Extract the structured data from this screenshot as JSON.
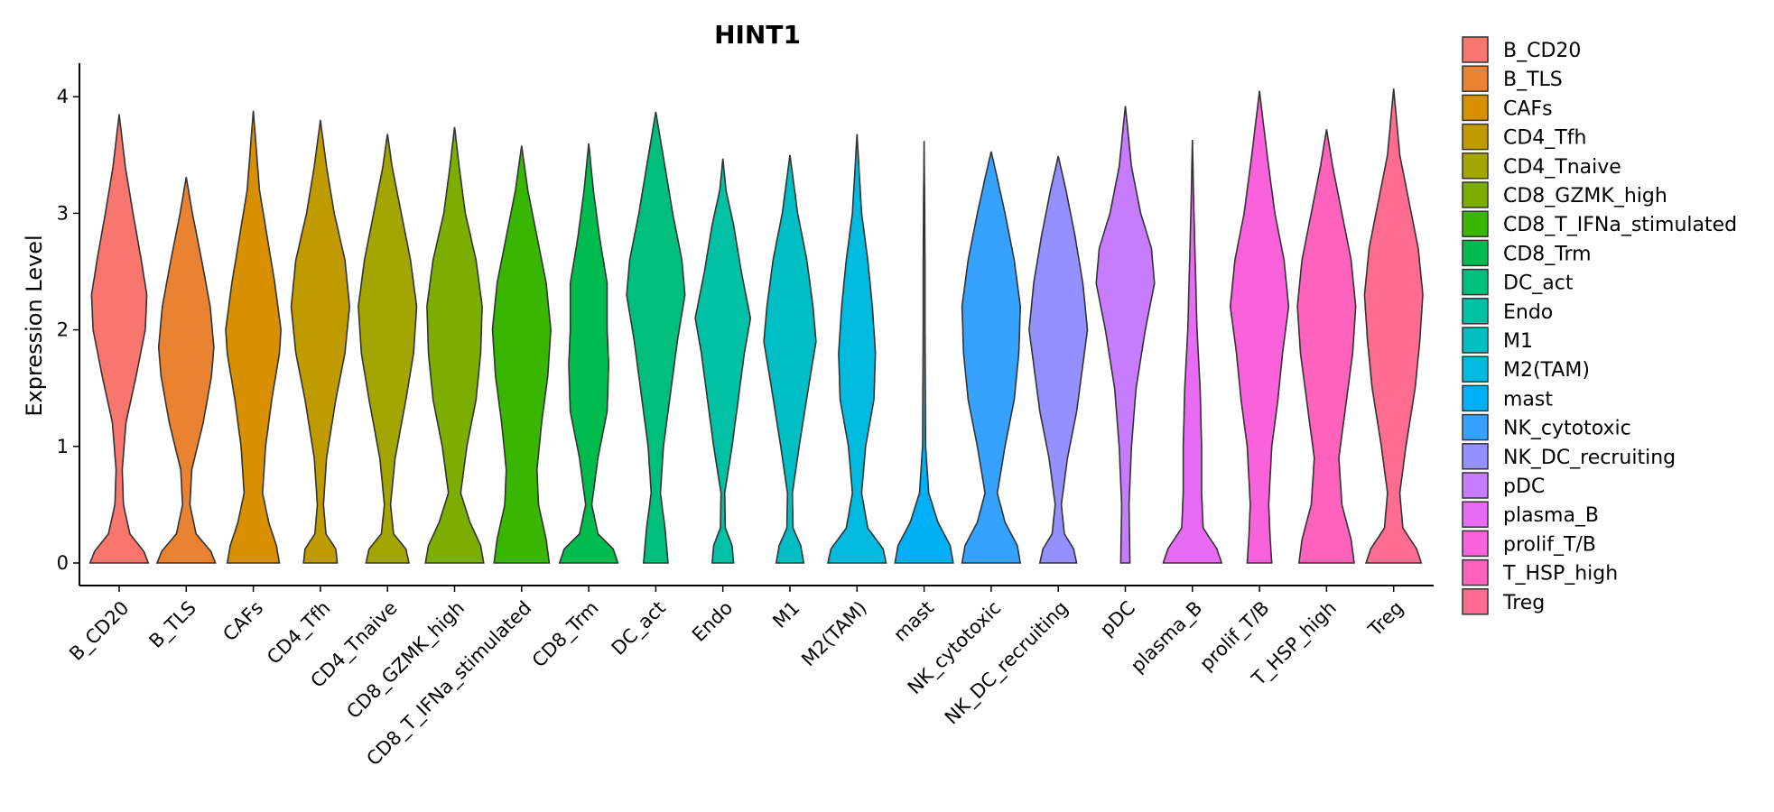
{
  "chart_data": {
    "type": "violin",
    "title": "HINT1",
    "xlabel": "",
    "ylabel": "Expression Level",
    "ylim": [
      0,
      4.3
    ],
    "yticks": [
      "0",
      "1",
      "2",
      "3",
      "4"
    ],
    "grid": false,
    "legend_position": "right",
    "categories": [
      "B_CD20",
      "B_TLS",
      "CAFs",
      "CD4_Tfh",
      "CD4_Tnaive",
      "CD8_GZMK_high",
      "CD8_T_IFNa_stimulated",
      "CD8_Trm",
      "DC_act",
      "Endo",
      "M1",
      "M2(TAM)",
      "mast",
      "NK_cytotoxic",
      "NK_DC_recruiting",
      "pDC",
      "plasma_B",
      "prolif_T/B",
      "T_HSP_high",
      "Treg"
    ],
    "colors": [
      "#F8766D",
      "#EA8331",
      "#D89000",
      "#C09B00",
      "#A3A500",
      "#7CAE00",
      "#39B600",
      "#00BB4E",
      "#00BF7D",
      "#00C1A3",
      "#00BFC4",
      "#00BAE0",
      "#00B0F6",
      "#35A2FF",
      "#9590FF",
      "#C77CFF",
      "#E76BF3",
      "#FA62DB",
      "#FF62BC",
      "#FF6C91"
    ],
    "series": [
      {
        "max": 3.85,
        "profile": [
          [
            0,
            0.95
          ],
          [
            0.1,
            0.8
          ],
          [
            0.25,
            0.35
          ],
          [
            0.5,
            0.14
          ],
          [
            0.8,
            0.1
          ],
          [
            1.2,
            0.22
          ],
          [
            1.6,
            0.55
          ],
          [
            2.0,
            0.85
          ],
          [
            2.3,
            0.9
          ],
          [
            2.6,
            0.72
          ],
          [
            3.0,
            0.45
          ],
          [
            3.4,
            0.2
          ],
          [
            3.85,
            0
          ]
        ]
      },
      {
        "max": 3.31,
        "profile": [
          [
            0,
            0.95
          ],
          [
            0.1,
            0.8
          ],
          [
            0.25,
            0.32
          ],
          [
            0.5,
            0.12
          ],
          [
            0.8,
            0.18
          ],
          [
            1.2,
            0.55
          ],
          [
            1.6,
            0.82
          ],
          [
            1.85,
            0.9
          ],
          [
            2.2,
            0.78
          ],
          [
            2.6,
            0.5
          ],
          [
            3.0,
            0.2
          ],
          [
            3.31,
            0
          ]
        ]
      },
      {
        "max": 3.88,
        "profile": [
          [
            0,
            0.85
          ],
          [
            0.15,
            0.75
          ],
          [
            0.35,
            0.5
          ],
          [
            0.6,
            0.3
          ],
          [
            1.0,
            0.4
          ],
          [
            1.4,
            0.6
          ],
          [
            1.8,
            0.85
          ],
          [
            2.0,
            0.9
          ],
          [
            2.4,
            0.7
          ],
          [
            2.8,
            0.45
          ],
          [
            3.2,
            0.2
          ],
          [
            3.88,
            0
          ]
        ]
      },
      {
        "max": 3.8,
        "profile": [
          [
            0,
            0.55
          ],
          [
            0.12,
            0.5
          ],
          [
            0.25,
            0.18
          ],
          [
            0.5,
            0.1
          ],
          [
            0.9,
            0.2
          ],
          [
            1.4,
            0.5
          ],
          [
            1.8,
            0.8
          ],
          [
            2.2,
            0.95
          ],
          [
            2.6,
            0.8
          ],
          [
            3.0,
            0.45
          ],
          [
            3.4,
            0.2
          ],
          [
            3.8,
            0
          ]
        ]
      },
      {
        "max": 3.68,
        "profile": [
          [
            0,
            0.7
          ],
          [
            0.12,
            0.6
          ],
          [
            0.25,
            0.2
          ],
          [
            0.5,
            0.1
          ],
          [
            0.9,
            0.25
          ],
          [
            1.4,
            0.6
          ],
          [
            1.8,
            0.85
          ],
          [
            2.2,
            0.95
          ],
          [
            2.6,
            0.75
          ],
          [
            3.0,
            0.45
          ],
          [
            3.4,
            0.15
          ],
          [
            3.68,
            0
          ]
        ]
      },
      {
        "max": 3.74,
        "profile": [
          [
            0,
            0.95
          ],
          [
            0.15,
            0.85
          ],
          [
            0.35,
            0.5
          ],
          [
            0.6,
            0.2
          ],
          [
            1.0,
            0.4
          ],
          [
            1.4,
            0.7
          ],
          [
            1.8,
            0.85
          ],
          [
            2.2,
            0.9
          ],
          [
            2.6,
            0.7
          ],
          [
            3.0,
            0.35
          ],
          [
            3.4,
            0.15
          ],
          [
            3.74,
            0
          ]
        ]
      },
      {
        "max": 3.58,
        "profile": [
          [
            0,
            0.9
          ],
          [
            0.2,
            0.8
          ],
          [
            0.5,
            0.55
          ],
          [
            0.8,
            0.5
          ],
          [
            1.2,
            0.65
          ],
          [
            1.6,
            0.85
          ],
          [
            2.0,
            0.95
          ],
          [
            2.4,
            0.8
          ],
          [
            2.8,
            0.5
          ],
          [
            3.2,
            0.2
          ],
          [
            3.58,
            0
          ]
        ]
      },
      {
        "max": 3.6,
        "profile": [
          [
            0,
            0.95
          ],
          [
            0.12,
            0.8
          ],
          [
            0.25,
            0.3
          ],
          [
            0.5,
            0.1
          ],
          [
            0.9,
            0.3
          ],
          [
            1.3,
            0.6
          ],
          [
            1.7,
            0.65
          ],
          [
            2.0,
            0.6
          ],
          [
            2.4,
            0.6
          ],
          [
            2.8,
            0.35
          ],
          [
            3.2,
            0.15
          ],
          [
            3.6,
            0
          ]
        ]
      },
      {
        "max": 3.87,
        "profile": [
          [
            0,
            0.4
          ],
          [
            0.3,
            0.3
          ],
          [
            0.6,
            0.15
          ],
          [
            1.0,
            0.25
          ],
          [
            1.5,
            0.5
          ],
          [
            1.9,
            0.7
          ],
          [
            2.3,
            0.95
          ],
          [
            2.6,
            0.85
          ],
          [
            3.0,
            0.55
          ],
          [
            3.4,
            0.3
          ],
          [
            3.87,
            0
          ]
        ]
      },
      {
        "max": 3.47,
        "profile": [
          [
            0,
            0.35
          ],
          [
            0.15,
            0.3
          ],
          [
            0.3,
            0.08
          ],
          [
            0.6,
            0.06
          ],
          [
            1.0,
            0.3
          ],
          [
            1.5,
            0.55
          ],
          [
            1.8,
            0.7
          ],
          [
            2.1,
            0.9
          ],
          [
            2.5,
            0.6
          ],
          [
            2.9,
            0.35
          ],
          [
            3.2,
            0.1
          ],
          [
            3.47,
            0
          ]
        ]
      },
      {
        "max": 3.5,
        "profile": [
          [
            0,
            0.45
          ],
          [
            0.15,
            0.35
          ],
          [
            0.3,
            0.1
          ],
          [
            0.6,
            0.08
          ],
          [
            1.0,
            0.3
          ],
          [
            1.5,
            0.6
          ],
          [
            1.9,
            0.85
          ],
          [
            2.2,
            0.75
          ],
          [
            2.6,
            0.55
          ],
          [
            3.0,
            0.25
          ],
          [
            3.3,
            0.1
          ],
          [
            3.5,
            0
          ]
        ]
      },
      {
        "max": 3.68,
        "profile": [
          [
            0,
            0.95
          ],
          [
            0.12,
            0.85
          ],
          [
            0.3,
            0.35
          ],
          [
            0.6,
            0.15
          ],
          [
            1.0,
            0.28
          ],
          [
            1.4,
            0.55
          ],
          [
            1.8,
            0.6
          ],
          [
            2.2,
            0.5
          ],
          [
            2.6,
            0.35
          ],
          [
            3.0,
            0.15
          ],
          [
            3.68,
            0
          ]
        ]
      },
      {
        "max": 3.62,
        "profile": [
          [
            0,
            0.95
          ],
          [
            0.15,
            0.85
          ],
          [
            0.35,
            0.45
          ],
          [
            0.6,
            0.15
          ],
          [
            1.0,
            0.05
          ],
          [
            1.5,
            0.04
          ],
          [
            2.0,
            0.03
          ],
          [
            2.5,
            0.03
          ],
          [
            3.0,
            0.02
          ],
          [
            3.62,
            0
          ]
        ]
      },
      {
        "max": 3.53,
        "profile": [
          [
            0,
            0.95
          ],
          [
            0.15,
            0.85
          ],
          [
            0.35,
            0.45
          ],
          [
            0.6,
            0.2
          ],
          [
            1.0,
            0.45
          ],
          [
            1.4,
            0.75
          ],
          [
            1.8,
            0.9
          ],
          [
            2.2,
            0.95
          ],
          [
            2.6,
            0.75
          ],
          [
            3.0,
            0.45
          ],
          [
            3.3,
            0.2
          ],
          [
            3.53,
            0
          ]
        ]
      },
      {
        "max": 3.49,
        "profile": [
          [
            0,
            0.6
          ],
          [
            0.12,
            0.5
          ],
          [
            0.25,
            0.2
          ],
          [
            0.5,
            0.1
          ],
          [
            0.9,
            0.3
          ],
          [
            1.3,
            0.6
          ],
          [
            1.7,
            0.8
          ],
          [
            2.0,
            0.95
          ],
          [
            2.4,
            0.8
          ],
          [
            2.8,
            0.55
          ],
          [
            3.2,
            0.25
          ],
          [
            3.49,
            0
          ]
        ]
      },
      {
        "max": 3.92,
        "profile": [
          [
            0,
            0.15
          ],
          [
            0.5,
            0.12
          ],
          [
            1.0,
            0.2
          ],
          [
            1.5,
            0.35
          ],
          [
            2.0,
            0.65
          ],
          [
            2.4,
            0.95
          ],
          [
            2.7,
            0.85
          ],
          [
            3.0,
            0.5
          ],
          [
            3.4,
            0.2
          ],
          [
            3.92,
            0
          ]
        ]
      },
      {
        "max": 3.63,
        "profile": [
          [
            0,
            0.95
          ],
          [
            0.12,
            0.8
          ],
          [
            0.3,
            0.35
          ],
          [
            0.6,
            0.3
          ],
          [
            1.0,
            0.3
          ],
          [
            1.5,
            0.25
          ],
          [
            2.0,
            0.15
          ],
          [
            2.5,
            0.1
          ],
          [
            3.0,
            0.05
          ],
          [
            3.63,
            0
          ]
        ]
      },
      {
        "max": 4.05,
        "profile": [
          [
            0,
            0.4
          ],
          [
            0.2,
            0.35
          ],
          [
            0.5,
            0.3
          ],
          [
            1.0,
            0.4
          ],
          [
            1.4,
            0.6
          ],
          [
            1.8,
            0.75
          ],
          [
            2.2,
            0.95
          ],
          [
            2.6,
            0.8
          ],
          [
            3.0,
            0.5
          ],
          [
            3.5,
            0.25
          ],
          [
            4.05,
            0
          ]
        ]
      },
      {
        "max": 3.72,
        "profile": [
          [
            0,
            0.9
          ],
          [
            0.2,
            0.8
          ],
          [
            0.5,
            0.5
          ],
          [
            0.9,
            0.4
          ],
          [
            1.4,
            0.65
          ],
          [
            1.8,
            0.85
          ],
          [
            2.2,
            0.95
          ],
          [
            2.6,
            0.8
          ],
          [
            3.0,
            0.5
          ],
          [
            3.4,
            0.2
          ],
          [
            3.72,
            0
          ]
        ]
      },
      {
        "max": 4.07,
        "profile": [
          [
            0,
            0.9
          ],
          [
            0.12,
            0.75
          ],
          [
            0.3,
            0.3
          ],
          [
            0.6,
            0.2
          ],
          [
            1.0,
            0.4
          ],
          [
            1.5,
            0.7
          ],
          [
            1.9,
            0.85
          ],
          [
            2.3,
            0.95
          ],
          [
            2.7,
            0.8
          ],
          [
            3.1,
            0.5
          ],
          [
            3.5,
            0.2
          ],
          [
            4.07,
            0
          ]
        ]
      }
    ]
  }
}
